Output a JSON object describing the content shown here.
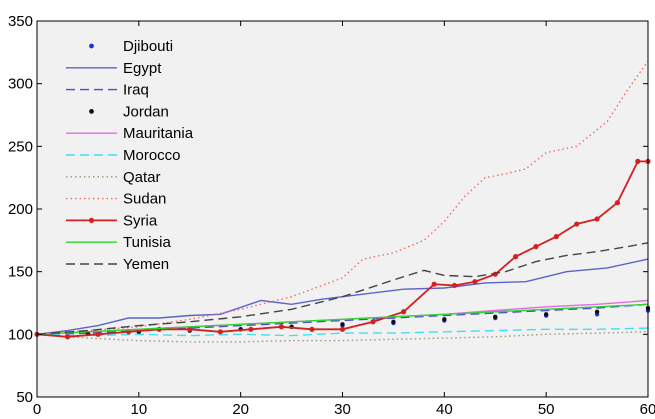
{
  "chart_data": {
    "type": "line",
    "title": "",
    "xlabel": "",
    "ylabel": "",
    "xlim": [
      0,
      60
    ],
    "ylim": [
      50,
      350
    ],
    "xticks": [
      0,
      10,
      20,
      30,
      40,
      50,
      60
    ],
    "yticks": [
      50,
      100,
      150,
      200,
      250,
      300,
      350
    ],
    "grid": false,
    "legend": "top-left",
    "background": "#f1f1f1",
    "series": [
      {
        "name": "Djibouti",
        "color": "#1f35d6",
        "style": "dots",
        "points": [
          [
            0,
            100
          ],
          [
            5,
            101
          ],
          [
            10,
            102
          ],
          [
            15,
            103
          ],
          [
            20,
            104
          ],
          [
            25,
            106
          ],
          [
            30,
            107
          ],
          [
            35,
            109
          ],
          [
            40,
            111
          ],
          [
            45,
            113
          ],
          [
            50,
            115
          ],
          [
            55,
            116
          ],
          [
            60,
            119
          ]
        ]
      },
      {
        "name": "Egypt",
        "color": "#5a63c8",
        "style": "solid",
        "points": [
          [
            0,
            100
          ],
          [
            3,
            103
          ],
          [
            6,
            107
          ],
          [
            9,
            113
          ],
          [
            12,
            113
          ],
          [
            15,
            115
          ],
          [
            18,
            116
          ],
          [
            22,
            127
          ],
          [
            25,
            124
          ],
          [
            28,
            128
          ],
          [
            32,
            132
          ],
          [
            36,
            136
          ],
          [
            40,
            137
          ],
          [
            44,
            141
          ],
          [
            48,
            142
          ],
          [
            52,
            150
          ],
          [
            56,
            153
          ],
          [
            60,
            160
          ]
        ]
      },
      {
        "name": "Iraq",
        "color": "#4a4ae0",
        "style": "dashed",
        "points": [
          [
            0,
            100
          ],
          [
            5,
            101
          ],
          [
            10,
            103
          ],
          [
            15,
            105
          ],
          [
            20,
            107
          ],
          [
            25,
            109
          ],
          [
            30,
            111
          ],
          [
            35,
            113
          ],
          [
            40,
            115
          ],
          [
            45,
            117
          ],
          [
            50,
            119
          ],
          [
            55,
            121
          ],
          [
            60,
            124
          ]
        ]
      },
      {
        "name": "Jordan",
        "color": "#111111",
        "style": "dots",
        "points": [
          [
            0,
            100
          ],
          [
            5,
            101
          ],
          [
            10,
            102
          ],
          [
            15,
            103
          ],
          [
            20,
            104
          ],
          [
            25,
            106
          ],
          [
            30,
            108
          ],
          [
            35,
            110
          ],
          [
            40,
            112
          ],
          [
            45,
            114
          ],
          [
            50,
            116
          ],
          [
            55,
            118
          ],
          [
            60,
            121
          ]
        ]
      },
      {
        "name": "Mauritania",
        "color": "#e36be3",
        "style": "solid",
        "points": [
          [
            0,
            100
          ],
          [
            5,
            102
          ],
          [
            10,
            104
          ],
          [
            15,
            106
          ],
          [
            20,
            108
          ],
          [
            25,
            110
          ],
          [
            30,
            112
          ],
          [
            35,
            114
          ],
          [
            40,
            116
          ],
          [
            45,
            119
          ],
          [
            50,
            122
          ],
          [
            55,
            124
          ],
          [
            60,
            127
          ]
        ]
      },
      {
        "name": "Morocco",
        "color": "#40e0f0",
        "style": "dashed",
        "points": [
          [
            0,
            100
          ],
          [
            5,
            99
          ],
          [
            10,
            100
          ],
          [
            15,
            99
          ],
          [
            20,
            100
          ],
          [
            25,
            99
          ],
          [
            30,
            101
          ],
          [
            35,
            101
          ],
          [
            40,
            102
          ],
          [
            45,
            103
          ],
          [
            50,
            104
          ],
          [
            55,
            104
          ],
          [
            60,
            105
          ]
        ]
      },
      {
        "name": "Qatar",
        "color": "#9a9a78",
        "style": "dotted",
        "points": [
          [
            0,
            100
          ],
          [
            5,
            97
          ],
          [
            10,
            95
          ],
          [
            15,
            94
          ],
          [
            20,
            94
          ],
          [
            25,
            95
          ],
          [
            30,
            95
          ],
          [
            35,
            96
          ],
          [
            40,
            97
          ],
          [
            45,
            98
          ],
          [
            50,
            100
          ],
          [
            55,
            101
          ],
          [
            60,
            102
          ]
        ]
      },
      {
        "name": "Sudan",
        "color": "#f06a6a",
        "style": "dotted",
        "points": [
          [
            0,
            100
          ],
          [
            5,
            103
          ],
          [
            10,
            106
          ],
          [
            15,
            112
          ],
          [
            20,
            120
          ],
          [
            25,
            130
          ],
          [
            30,
            145
          ],
          [
            32,
            160
          ],
          [
            35,
            165
          ],
          [
            38,
            175
          ],
          [
            40,
            190
          ],
          [
            42,
            210
          ],
          [
            44,
            225
          ],
          [
            46,
            228
          ],
          [
            48,
            232
          ],
          [
            50,
            245
          ],
          [
            53,
            250
          ],
          [
            56,
            270
          ],
          [
            58,
            295
          ],
          [
            60,
            318
          ]
        ]
      },
      {
        "name": "Syria",
        "color": "#d42020",
        "style": "solid-markers",
        "points": [
          [
            0,
            100
          ],
          [
            3,
            98
          ],
          [
            6,
            100
          ],
          [
            9,
            102
          ],
          [
            12,
            104
          ],
          [
            15,
            104
          ],
          [
            18,
            102
          ],
          [
            21,
            104
          ],
          [
            24,
            106
          ],
          [
            27,
            104
          ],
          [
            30,
            104
          ],
          [
            33,
            110
          ],
          [
            36,
            118
          ],
          [
            39,
            140
          ],
          [
            41,
            139
          ],
          [
            43,
            142
          ],
          [
            45,
            148
          ],
          [
            47,
            162
          ],
          [
            49,
            170
          ],
          [
            51,
            178
          ],
          [
            53,
            188
          ],
          [
            55,
            192
          ],
          [
            57,
            205
          ],
          [
            59,
            238
          ],
          [
            60,
            238
          ]
        ]
      },
      {
        "name": "Tunisia",
        "color": "#2fd62f",
        "style": "solid",
        "points": [
          [
            0,
            100
          ],
          [
            5,
            102
          ],
          [
            10,
            104
          ],
          [
            15,
            106
          ],
          [
            20,
            108
          ],
          [
            25,
            110
          ],
          [
            30,
            112
          ],
          [
            35,
            114
          ],
          [
            40,
            116
          ],
          [
            45,
            118
          ],
          [
            50,
            120
          ],
          [
            55,
            122
          ],
          [
            60,
            124
          ]
        ]
      },
      {
        "name": "Yemen",
        "color": "#444444",
        "style": "dashed",
        "points": [
          [
            0,
            100
          ],
          [
            5,
            103
          ],
          [
            10,
            107
          ],
          [
            15,
            110
          ],
          [
            20,
            114
          ],
          [
            25,
            120
          ],
          [
            30,
            130
          ],
          [
            33,
            138
          ],
          [
            36,
            146
          ],
          [
            38,
            151
          ],
          [
            40,
            147
          ],
          [
            43,
            146
          ],
          [
            46,
            150
          ],
          [
            49,
            158
          ],
          [
            52,
            163
          ],
          [
            55,
            166
          ],
          [
            58,
            170
          ],
          [
            60,
            173
          ]
        ]
      }
    ]
  }
}
